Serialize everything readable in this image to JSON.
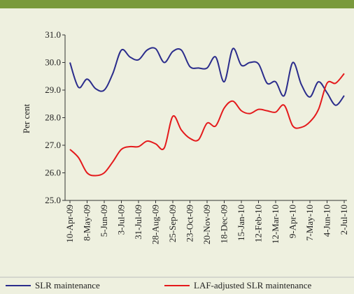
{
  "chart_data": {
    "type": "line",
    "ylabel": "Per cent",
    "categories": [
      "10-Apr-09",
      null,
      "8-May-09",
      null,
      "5-Jun-09",
      null,
      "3-Jul-09",
      null,
      "31-Jul-09",
      null,
      "28-Aug-09",
      null,
      "25-Sep-09",
      null,
      "23-Oct-09",
      null,
      "20-Nov-09",
      null,
      "18-Dec-09",
      null,
      "15-Jan-10",
      null,
      "12-Feb-10",
      null,
      "12-Mar-10",
      null,
      "9-Apr-10",
      null,
      "7-May-10",
      null,
      "4-Jun-10",
      null,
      "2-Jul-10"
    ],
    "series": [
      {
        "name": "SLR maintenance",
        "color": "#2b2d8c",
        "values": [
          30.0,
          29.1,
          29.4,
          29.05,
          29.0,
          29.6,
          30.45,
          30.2,
          30.1,
          30.45,
          30.5,
          30.0,
          30.4,
          30.45,
          29.85,
          29.8,
          29.8,
          30.2,
          29.3,
          30.5,
          29.9,
          30.0,
          29.95,
          29.25,
          29.3,
          28.8,
          30.0,
          29.2,
          28.75,
          29.3,
          28.9,
          28.45,
          28.8
        ]
      },
      {
        "name": "LAF-adjusted SLR maintenance",
        "color": "#e41a1c",
        "values": [
          26.85,
          26.55,
          26.0,
          25.9,
          26.0,
          26.4,
          26.85,
          26.95,
          26.95,
          27.15,
          27.05,
          26.9,
          28.05,
          27.55,
          27.25,
          27.2,
          27.8,
          27.7,
          28.35,
          28.6,
          28.25,
          28.15,
          28.3,
          28.25,
          28.2,
          28.45,
          27.7,
          27.65,
          27.85,
          28.3,
          29.25,
          29.25,
          29.6
        ]
      }
    ],
    "ylim": [
      25.0,
      31.0
    ],
    "yticks": [
      {
        "value": 25,
        "label": "25.0"
      },
      {
        "value": 26,
        "label": "26.0"
      },
      {
        "value": 27,
        "label": "27.0"
      },
      {
        "value": 28,
        "label": "28.0"
      },
      {
        "value": 29,
        "label": "29.0"
      },
      {
        "value": 30,
        "label": "30.0"
      },
      {
        "value": 31,
        "label": "31.0"
      }
    ]
  }
}
